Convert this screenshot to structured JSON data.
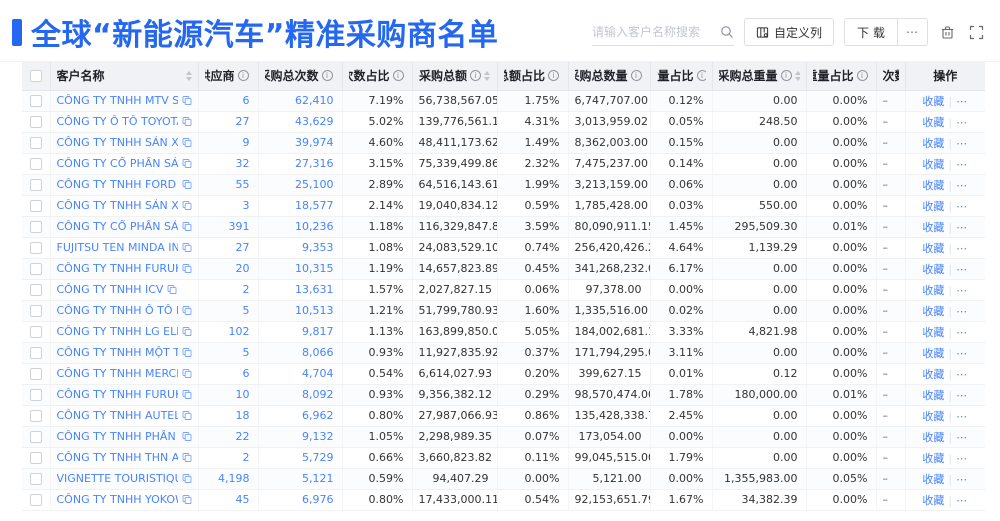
{
  "page": {
    "title": "全球“新能源汽车”精准采购商名单"
  },
  "toolbar": {
    "search_placeholder": "请输入客户名称搜索",
    "customize_columns_label": "自定义列",
    "download_label": "下载",
    "more_label": "⋯"
  },
  "table": {
    "headers": [
      {
        "key": "name",
        "label": "客户名称",
        "info": false,
        "sort": true
      },
      {
        "key": "supplier",
        "label": "供应商",
        "info": true,
        "sort": true
      },
      {
        "key": "times",
        "label": "采购总次数",
        "info": true,
        "sort": true
      },
      {
        "key": "timespct",
        "label": "次数占比",
        "info": true,
        "sort": true
      },
      {
        "key": "amount",
        "label": "采购总额",
        "info": true,
        "sort": true
      },
      {
        "key": "amountpct",
        "label": "总额占比",
        "info": true,
        "sort": true
      },
      {
        "key": "qty",
        "label": "采购总数量",
        "info": true,
        "sort": true
      },
      {
        "key": "qtypct",
        "label": "数量占比",
        "info": true,
        "sort": true
      },
      {
        "key": "weight",
        "label": "采购总重量",
        "info": true,
        "sort": true
      },
      {
        "key": "weightpct",
        "label": "重量占比",
        "info": true,
        "sort": true
      },
      {
        "key": "trend",
        "label": "次数趋势",
        "info": false,
        "sort": false
      },
      {
        "key": "op",
        "label": "操作",
        "info": false,
        "sort": false
      }
    ],
    "actions": {
      "favorite": "收藏",
      "divider": "|",
      "more": "⋯"
    },
    "rows": [
      {
        "name": "CÔNG TY TNHH MTV SẢN XUẤ...",
        "supplier": "6",
        "times": "62,410",
        "timespct": "7.19%",
        "amount": "56,738,567.05",
        "amountpct": "1.75%",
        "qty": "6,747,707.00",
        "qtypct": "0.12%",
        "weight": "0.00",
        "weightpct": "0.00%",
        "trend": "–"
      },
      {
        "name": "CÔNG TY Ô TÔ TOYOTA VIỆT ...",
        "supplier": "27",
        "times": "43,629",
        "timespct": "5.02%",
        "amount": "139,776,561.16",
        "amountpct": "4.31%",
        "qty": "3,013,959.02",
        "qtypct": "0.05%",
        "weight": "248.50",
        "weightpct": "0.00%",
        "trend": "–"
      },
      {
        "name": "CÔNG TY TNHH SẢN XUẤT VÀ ...",
        "supplier": "9",
        "times": "39,974",
        "timespct": "4.60%",
        "amount": "48,411,173.62",
        "amountpct": "1.49%",
        "qty": "8,362,003.00",
        "qtypct": "0.15%",
        "weight": "0.00",
        "weightpct": "0.00%",
        "trend": "–"
      },
      {
        "name": "CÔNG TY CỔ PHẦN SẢN XUẤT...",
        "supplier": "32",
        "times": "27,316",
        "timespct": "3.15%",
        "amount": "75,339,499.86",
        "amountpct": "2.32%",
        "qty": "7,475,237.00",
        "qtypct": "0.14%",
        "weight": "0.00",
        "weightpct": "0.00%",
        "trend": "–"
      },
      {
        "name": "CÔNG TY TNHH FORD VIỆT NAM",
        "supplier": "55",
        "times": "25,100",
        "timespct": "2.89%",
        "amount": "64,516,143.61",
        "amountpct": "1.99%",
        "qty": "3,213,159.00",
        "qtypct": "0.06%",
        "weight": "0.00",
        "weightpct": "0.00%",
        "trend": "–"
      },
      {
        "name": "CÔNG TY TNHH SẢN XUẤT VÀ ...",
        "supplier": "3",
        "times": "18,577",
        "timespct": "2.14%",
        "amount": "19,040,834.12",
        "amountpct": "0.59%",
        "qty": "1,785,428.00",
        "qtypct": "0.03%",
        "weight": "550.00",
        "weightpct": "0.00%",
        "trend": "–"
      },
      {
        "name": "CÔNG TY CỔ PHẦN SẢN XUẤT...",
        "supplier": "391",
        "times": "10,236",
        "timespct": "1.18%",
        "amount": "116,329,847.89",
        "amountpct": "3.59%",
        "qty": "80,090,911.15",
        "qtypct": "1.45%",
        "weight": "295,509.30",
        "weightpct": "0.01%",
        "trend": "–"
      },
      {
        "name": "FUJITSU TEN MINDA INDIA PVT...",
        "supplier": "27",
        "times": "9,353",
        "timespct": "1.08%",
        "amount": "24,083,529.10",
        "amountpct": "0.74%",
        "qty": "256,420,426.29",
        "qtypct": "4.64%",
        "weight": "1,139.29",
        "weightpct": "0.00%",
        "trend": "–"
      },
      {
        "name": "CÔNG TY TNHH FURUKAWA A...",
        "supplier": "20",
        "times": "10,315",
        "timespct": "1.19%",
        "amount": "14,657,823.89",
        "amountpct": "0.45%",
        "qty": "341,268,232.00",
        "qtypct": "6.17%",
        "weight": "0.00",
        "weightpct": "0.00%",
        "trend": "–"
      },
      {
        "name": "CÔNG TY TNHH ICV",
        "supplier": "2",
        "times": "13,631",
        "timespct": "1.57%",
        "amount": "2,027,827.15",
        "amountpct": "0.06%",
        "qty": "97,378.00",
        "qtypct": "0.00%",
        "weight": "0.00",
        "weightpct": "0.00%",
        "trend": "–"
      },
      {
        "name": "CÔNG TY TNHH Ô TÔ MITSUBI...",
        "supplier": "5",
        "times": "10,513",
        "timespct": "1.21%",
        "amount": "51,799,780.93",
        "amountpct": "1.60%",
        "qty": "1,335,516.00",
        "qtypct": "0.02%",
        "weight": "0.00",
        "weightpct": "0.00%",
        "trend": "–"
      },
      {
        "name": "CÔNG TY TNHH LG ELECTRON...",
        "supplier": "102",
        "times": "9,817",
        "timespct": "1.13%",
        "amount": "163,899,850.02",
        "amountpct": "5.05%",
        "qty": "184,002,681.15",
        "qtypct": "3.33%",
        "weight": "4,821.98",
        "weightpct": "0.00%",
        "trend": "–"
      },
      {
        "name": "CÔNG TY TNHH MỘT THÀNH V...",
        "supplier": "5",
        "times": "8,066",
        "timespct": "0.93%",
        "amount": "11,927,835.92",
        "amountpct": "0.37%",
        "qty": "171,794,295.00",
        "qtypct": "3.11%",
        "weight": "0.00",
        "weightpct": "0.00%",
        "trend": "–"
      },
      {
        "name": "CÔNG TY TNHH MERCEDES-B...",
        "supplier": "6",
        "times": "4,704",
        "timespct": "0.54%",
        "amount": "6,614,027.93",
        "amountpct": "0.20%",
        "qty": "399,627.15",
        "qtypct": "0.01%",
        "weight": "0.12",
        "weightpct": "0.00%",
        "trend": "–"
      },
      {
        "name": "CÔNG TY TNHH FURUKAWA A...",
        "supplier": "10",
        "times": "8,092",
        "timespct": "0.93%",
        "amount": "9,356,382.12",
        "amountpct": "0.29%",
        "qty": "98,570,474.00",
        "qtypct": "1.78%",
        "weight": "180,000.00",
        "weightpct": "0.01%",
        "trend": "–"
      },
      {
        "name": "CÔNG TY TNHH AUTEL VIỆT N...",
        "supplier": "18",
        "times": "6,962",
        "timespct": "0.80%",
        "amount": "27,987,066.93",
        "amountpct": "0.86%",
        "qty": "135,428,338.71",
        "qtypct": "2.45%",
        "weight": "0.00",
        "weightpct": "0.00%",
        "trend": "–"
      },
      {
        "name": "CÔNG TY TNHH PHÂN PHỐI T...",
        "supplier": "22",
        "times": "9,132",
        "timespct": "1.05%",
        "amount": "2,298,989.35",
        "amountpct": "0.07%",
        "qty": "173,054.00",
        "qtypct": "0.00%",
        "weight": "0.00",
        "weightpct": "0.00%",
        "trend": "–"
      },
      {
        "name": "CÔNG TY TNHH THN AUTOPAR...",
        "supplier": "2",
        "times": "5,729",
        "timespct": "0.66%",
        "amount": "3,660,823.82",
        "amountpct": "0.11%",
        "qty": "99,045,515.00",
        "qtypct": "1.79%",
        "weight": "0.00",
        "weightpct": "0.00%",
        "trend": "–"
      },
      {
        "name": "VIGNETTE TOURISTIQUE G UNI...",
        "supplier": "4,198",
        "times": "5,121",
        "timespct": "0.59%",
        "amount": "94,407.29",
        "amountpct": "0.00%",
        "qty": "5,121.00",
        "qtypct": "0.00%",
        "weight": "1,355,983.00",
        "weightpct": "0.05%",
        "trend": "–"
      },
      {
        "name": "CÔNG TY TNHH YOKOWO VIỆT...",
        "supplier": "45",
        "times": "6,976",
        "timespct": "0.80%",
        "amount": "17,433,000.11",
        "amountpct": "0.54%",
        "qty": "92,153,651.79",
        "qtypct": "1.67%",
        "weight": "34,382.39",
        "weightpct": "0.00%",
        "trend": "–"
      }
    ]
  }
}
